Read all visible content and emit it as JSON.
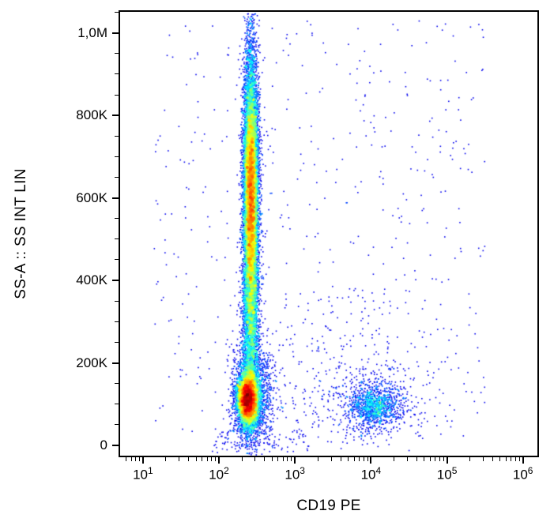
{
  "figure": {
    "kind": "flow-cytometry-dot-plot",
    "background": "#ffffff"
  },
  "chart_data": {
    "type": "scatter",
    "subtype": "flow-cytometry-pseudocolor-density",
    "title": "",
    "xlabel": "CD19 PE",
    "ylabel": "SS-A :: SS INT LIN",
    "x_scale": "log10",
    "y_scale": "linear",
    "x_domain_log10": [
      0.7,
      6.19
    ],
    "y_domain": [
      -25000,
      1051000
    ],
    "x_ticks": [
      {
        "base": "10",
        "exp": 1
      },
      {
        "base": "10",
        "exp": 2
      },
      {
        "base": "10",
        "exp": 3
      },
      {
        "base": "10",
        "exp": 4
      },
      {
        "base": "10",
        "exp": 5
      },
      {
        "base": "10",
        "exp": 6
      }
    ],
    "y_ticks": [
      {
        "value": 0,
        "label": "0"
      },
      {
        "value": 200000,
        "label": "200K"
      },
      {
        "value": 400000,
        "label": "400K"
      },
      {
        "value": 600000,
        "label": "600K"
      },
      {
        "value": 800000,
        "label": "800K"
      },
      {
        "value": 1000000,
        "label": "1,0M"
      }
    ],
    "y_minor": {
      "start": 50000,
      "end": 1050000,
      "step": 50000
    },
    "grid": false,
    "legend": false,
    "colormap": "jet",
    "density_scale": "log",
    "density_gamma": 1.25,
    "dot_size_px": 1.6,
    "seed": 1337,
    "populations": [
      {
        "name": "cd19neg-granulocyte-column-upper",
        "type": "gaussian",
        "n": 9500,
        "x_mean_log10": 2.42,
        "x_sigma_log10": 0.05,
        "y_mean": 620000,
        "y_sigma": 170000
      },
      {
        "name": "cd19neg-column-hot-core",
        "type": "gaussian",
        "n": 3200,
        "x_mean_log10": 2.42,
        "x_sigma_log10": 0.038,
        "y_mean": 600000,
        "y_sigma": 110000
      },
      {
        "name": "cd19neg-column-lower",
        "type": "gaussian",
        "n": 2800,
        "x_mean_log10": 2.42,
        "x_sigma_log10": 0.055,
        "y_mean": 300000,
        "y_sigma": 130000
      },
      {
        "name": "cd19neg-lymphocyte-hotspot",
        "type": "gaussian",
        "n": 6500,
        "x_mean_log10": 2.38,
        "x_sigma_log10": 0.065,
        "y_mean": 112000,
        "y_sigma": 30000
      },
      {
        "name": "cd19neg-lymphocyte-halo",
        "type": "gaussian",
        "n": 1800,
        "x_mean_log10": 2.44,
        "x_sigma_log10": 0.13,
        "y_mean": 120000,
        "y_sigma": 62000
      },
      {
        "name": "cd19pos-b-cell-cluster",
        "type": "gaussian",
        "n": 1100,
        "x_mean_log10": 4.05,
        "x_sigma_log10": 0.16,
        "y_mean": 95000,
        "y_sigma": 26000
      },
      {
        "name": "cd19pos-b-cell-halo",
        "type": "gaussian",
        "n": 320,
        "x_mean_log10": 4.06,
        "x_sigma_log10": 0.4,
        "y_mean": 110000,
        "y_sigma": 60000
      },
      {
        "name": "sparse-background",
        "type": "uniform",
        "n": 520,
        "x_range_log10": [
          1.15,
          5.5
        ],
        "y_range": [
          0,
          1030000
        ]
      },
      {
        "name": "mid-region-scatter",
        "type": "uniform",
        "n": 180,
        "x_range_log10": [
          2.75,
          4.35
        ],
        "y_range": [
          20000,
          380000
        ]
      },
      {
        "name": "baseline-scatter",
        "type": "uniform",
        "n": 110,
        "x_range_log10": [
          1.9,
          3.2
        ],
        "y_range": [
          -18000,
          45000
        ]
      }
    ]
  }
}
